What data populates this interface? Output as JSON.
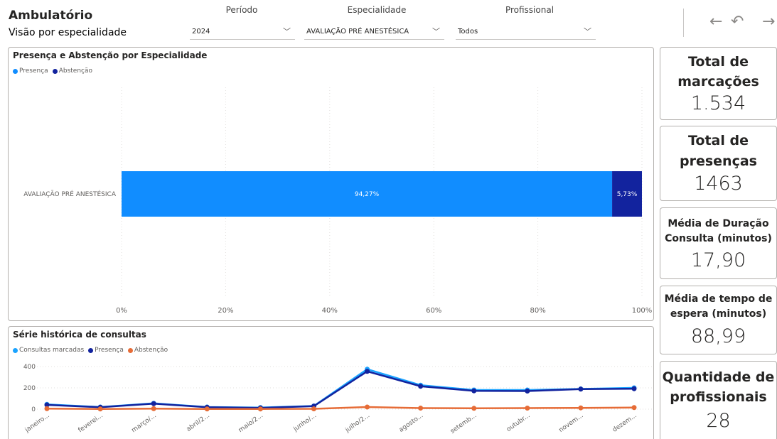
{
  "header": {
    "title": "Ambulatório",
    "subtitle": "Visão por especialidade"
  },
  "filters": [
    {
      "label": "Período",
      "value": "2024"
    },
    {
      "label": "Especialidade",
      "value": "AVALIAÇÃO PRÉ ANESTÉSICA"
    },
    {
      "label": "Profissional",
      "value": "Todos"
    }
  ],
  "nav": {
    "back_icon": "←",
    "undo_icon": "↶",
    "forward_icon": "→"
  },
  "colors": {
    "presenca": "#118DFF",
    "abstencao": "#12239E",
    "marcadas": "#1AA3FF",
    "abst_line": "#E66C37"
  },
  "chart_data": [
    {
      "type": "bar",
      "title": "Presença e Abstenção por Especialidade",
      "stacked": "100%",
      "orientation": "horizontal",
      "categories": [
        "AVALIAÇÃO PRÉ ANESTÉSICA"
      ],
      "series": [
        {
          "name": "Presença",
          "values": [
            94.27
          ],
          "label": "94,27%"
        },
        {
          "name": "Abstenção",
          "values": [
            5.73
          ],
          "label": "5,73%"
        }
      ],
      "xticks": [
        "0%",
        "20%",
        "40%",
        "60%",
        "80%",
        "100%"
      ],
      "xlim": [
        0,
        100
      ],
      "legend": "top-left"
    },
    {
      "type": "line",
      "title": "Série histórica de consultas",
      "categories": [
        "janeiro...",
        "feverei...",
        "março/...",
        "abril/2...",
        "maio/2...",
        "junho/...",
        "julho/2...",
        "agosto...",
        "setemb...",
        "outubr...",
        "novem...",
        "dezem..."
      ],
      "series": [
        {
          "name": "Consultas marcadas",
          "values": [
            45,
            20,
            55,
            20,
            15,
            30,
            375,
            225,
            180,
            180,
            190,
            200
          ]
        },
        {
          "name": "Presença",
          "values": [
            40,
            18,
            52,
            18,
            12,
            28,
            355,
            215,
            172,
            170,
            188,
            192
          ]
        },
        {
          "name": "Abstenção",
          "values": [
            5,
            2,
            5,
            2,
            2,
            3,
            20,
            10,
            8,
            10,
            12,
            15
          ]
        }
      ],
      "yticks": [
        "400",
        "200",
        "0"
      ],
      "ylim": [
        0,
        400
      ],
      "legend": "top-left"
    }
  ],
  "cards": [
    {
      "title_line1": "Total de",
      "title_line2": "marcações",
      "value": "1.534"
    },
    {
      "title_line1": "Total de",
      "title_line2": "presenças",
      "value": "1463"
    },
    {
      "title_line1": "Média de Duração",
      "title_line2": "Consulta (minutos)",
      "value": "17,90"
    },
    {
      "title_line1": "Média de tempo de",
      "title_line2": "espera (minutos)",
      "value": "88,99"
    },
    {
      "title_line1": "Quantidade de",
      "title_line2": "profissionais",
      "value": "28"
    }
  ]
}
